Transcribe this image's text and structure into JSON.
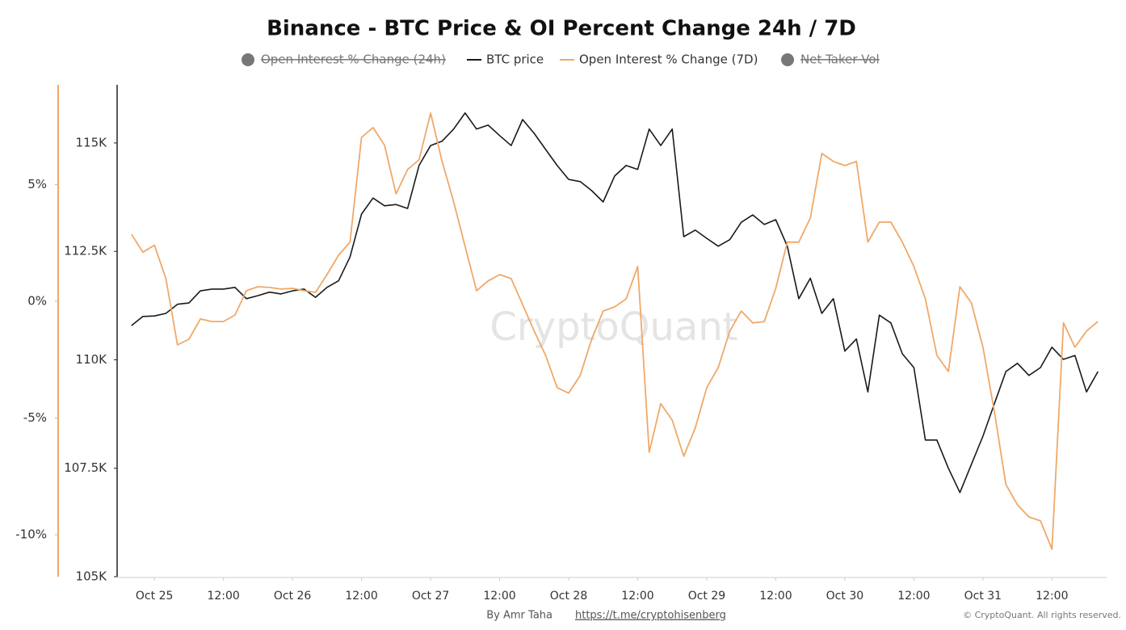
{
  "chart_data": {
    "type": "line",
    "title": "Binance - BTC Price & OI Percent Change 24h / 7D",
    "watermark": "CryptoQuant",
    "footer": {
      "author": "By Amr Taha",
      "link": "https://t.me/cryptohisenberg",
      "copyright": "© CryptoQuant. All rights reserved."
    },
    "x": [
      -4,
      -2,
      0,
      2,
      4,
      6,
      8,
      10,
      12,
      14,
      16,
      18,
      20,
      22,
      24,
      26,
      28,
      30,
      32,
      34,
      36,
      38,
      40,
      42,
      44,
      46,
      48,
      50,
      52,
      54,
      56,
      58,
      60,
      62,
      64,
      66,
      68,
      70,
      72,
      74,
      76,
      78,
      80,
      82,
      84,
      86,
      88,
      90,
      92,
      94,
      96,
      98,
      100,
      102,
      104,
      106,
      108,
      110,
      112,
      114,
      116,
      118,
      120,
      122,
      124,
      126,
      128,
      130,
      132,
      134,
      136,
      138,
      140,
      142,
      144,
      146,
      148,
      150,
      152,
      154,
      156,
      158,
      160,
      162,
      164
    ],
    "xlim": [
      -6.2,
      165.5
    ],
    "xticks": [
      {
        "value": 0,
        "label": "Oct 25"
      },
      {
        "value": 12,
        "label": "12:00"
      },
      {
        "value": 24,
        "label": "Oct 26"
      },
      {
        "value": 36,
        "label": "12:00"
      },
      {
        "value": 48,
        "label": "Oct 27"
      },
      {
        "value": 60,
        "label": "12:00"
      },
      {
        "value": 72,
        "label": "Oct 28"
      },
      {
        "value": 84,
        "label": "12:00"
      },
      {
        "value": 96,
        "label": "Oct 29"
      },
      {
        "value": 108,
        "label": "12:00"
      },
      {
        "value": 120,
        "label": "Oct 30"
      },
      {
        "value": 132,
        "label": "12:00"
      },
      {
        "value": 144,
        "label": "Oct 31"
      },
      {
        "value": 156,
        "label": "12:00"
      }
    ],
    "ylim": [
      105000,
      116340
    ],
    "yticks": [
      {
        "value": 105000,
        "label": "105K"
      },
      {
        "value": 107500,
        "label": "107.5K"
      },
      {
        "value": 110000,
        "label": "110K"
      },
      {
        "value": 112500,
        "label": "112.5K"
      },
      {
        "value": 115000,
        "label": "115K"
      }
    ],
    "y2lim": [
      -11.8,
      9.27
    ],
    "y2ticks": [
      {
        "value": -10,
        "label": "-10%"
      },
      {
        "value": -5,
        "label": "-5%"
      },
      {
        "value": 0,
        "label": "0%"
      },
      {
        "value": 5,
        "label": "5%"
      }
    ],
    "y2color": "#f0a868",
    "grid": false,
    "series": [
      {
        "name": "Open Interest % Change (24h)",
        "color": "#777777",
        "visible": false
      },
      {
        "name": "BTC price",
        "color": "#1a1a1a",
        "visible": true,
        "values": [
          110790,
          111000,
          111010,
          111070,
          111280,
          111310,
          111590,
          111630,
          111630,
          111670,
          111410,
          111480,
          111560,
          111520,
          111590,
          111630,
          111440,
          111670,
          111820,
          112370,
          113360,
          113730,
          113550,
          113580,
          113490,
          114480,
          114940,
          115040,
          115320,
          115690,
          115320,
          115410,
          115170,
          114940,
          115540,
          115220,
          114850,
          114480,
          114160,
          114110,
          113900,
          113640,
          114240,
          114480,
          114390,
          115320,
          114940,
          115320,
          112840,
          112990,
          112800,
          112620,
          112770,
          113170,
          113340,
          113120,
          113230,
          112620,
          111410,
          111880,
          111070,
          111410,
          110200,
          110480,
          109260,
          111030,
          110850,
          110140,
          109820,
          108150,
          108150,
          107500,
          106940,
          107590,
          108240,
          108990,
          109730,
          109920,
          109640,
          109820,
          110290,
          110010,
          110100,
          109260,
          109730
        ]
      },
      {
        "name": "Open Interest % Change (7D)",
        "color": "#f0a868",
        "visible": true,
        "axis": "y2",
        "values": [
          2.87,
          2.1,
          2.4,
          0.97,
          -1.87,
          -1.63,
          -0.76,
          -0.87,
          -0.87,
          -0.59,
          0.45,
          0.62,
          0.59,
          0.52,
          0.55,
          0.45,
          0.38,
          1.14,
          1.97,
          2.53,
          7.02,
          7.44,
          6.68,
          4.6,
          5.64,
          6.06,
          8.06,
          5.99,
          4.26,
          2.35,
          0.45,
          0.87,
          1.14,
          0.97,
          -0.14,
          -1.28,
          -2.32,
          -3.7,
          -3.94,
          -3.18,
          -1.63,
          -0.42,
          -0.24,
          0.1,
          1.49,
          -6.47,
          -4.39,
          -5.09,
          -6.64,
          -5.43,
          -3.7,
          -2.84,
          -1.28,
          -0.42,
          -0.93,
          -0.87,
          0.55,
          2.53,
          2.53,
          3.56,
          6.33,
          5.99,
          5.81,
          5.99,
          2.53,
          3.39,
          3.39,
          2.53,
          1.49,
          0.1,
          -2.32,
          -3.01,
          0.62,
          -0.07,
          -1.97,
          -4.74,
          -7.85,
          -8.72,
          -9.24,
          -9.41,
          -10.62,
          -0.93,
          -1.97,
          -1.28,
          -0.87
        ]
      },
      {
        "name": "Net Taker Vol",
        "color": "#777777",
        "visible": false
      }
    ]
  }
}
